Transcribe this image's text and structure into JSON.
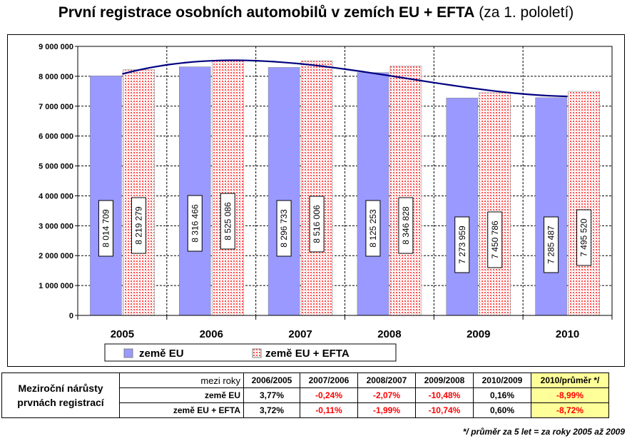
{
  "title": {
    "bold": "První registrace osobních automobilů v zemích EU + EFTA",
    "normal": "(za 1. pololetí)"
  },
  "chart_data": {
    "type": "bar",
    "categories": [
      "2005",
      "2006",
      "2007",
      "2008",
      "2009",
      "2010"
    ],
    "series": [
      {
        "name": "země EU",
        "values": [
          8014709,
          8316466,
          8296733,
          8125253,
          7273959,
          7285487
        ],
        "labels": [
          "8 014 709",
          "8 316 466",
          "8 296 733",
          "8 125 253",
          "7 273 959",
          "7 285 487"
        ],
        "color": "#9999ff"
      },
      {
        "name": "země EU + EFTA",
        "values": [
          8219279,
          8525086,
          8516006,
          8346828,
          7450786,
          7495520
        ],
        "labels": [
          "8 219 279",
          "8 525 086",
          "8 516 006",
          "8 346 828",
          "7 450 786",
          "7 495 520"
        ],
        "color": "#ff6666"
      }
    ],
    "trendline": {
      "type": "polynomial",
      "color": "#000080"
    },
    "ylim": [
      0,
      9000000
    ],
    "yticks": [
      0,
      1000000,
      2000000,
      3000000,
      4000000,
      5000000,
      6000000,
      7000000,
      8000000,
      9000000
    ],
    "ytick_labels": [
      "0",
      "1 000 000",
      "2 000 000",
      "3 000 000",
      "4 000 000",
      "5 000 000",
      "6 000 000",
      "7 000 000",
      "8 000 000",
      "9 000 000"
    ],
    "grid": true,
    "legend": "bottom"
  },
  "table": {
    "side_label_line1": "Meziroční nárůsty",
    "side_label_line2": "prvnách registrací",
    "header_label": "mezi roky",
    "columns": [
      "2006/2005",
      "2007/2006",
      "2008/2007",
      "2009/2008",
      "2010/2009",
      "2010/průměr */"
    ],
    "rows": [
      {
        "label": "země EU",
        "values": [
          "3,77%",
          "-0,24%",
          "-2,07%",
          "-10,48%",
          "0,16%",
          "-8,99%"
        ]
      },
      {
        "label": "země EU + EFTA",
        "values": [
          "3,72%",
          "-0,11%",
          "-1,99%",
          "-10,74%",
          "0,60%",
          "-8,72%"
        ]
      }
    ]
  },
  "footnote": "*/ průměr za 5 let  = za roky 2005 až 2009"
}
